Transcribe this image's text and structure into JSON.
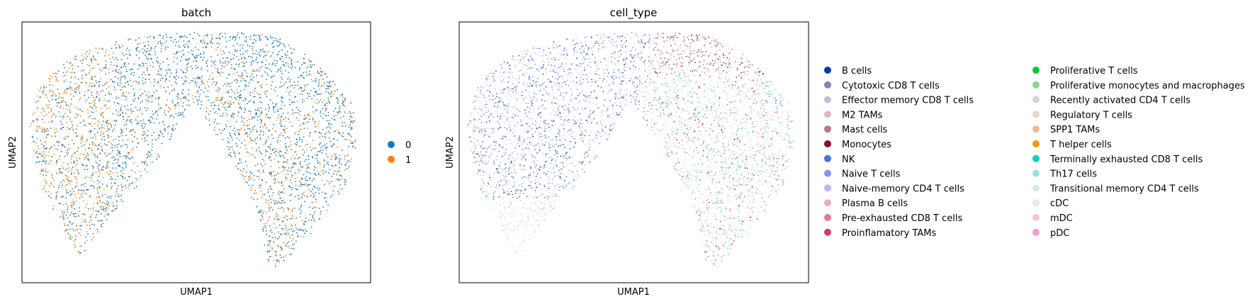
{
  "chart_data": [
    {
      "type": "scatter",
      "title": "batch",
      "xlabel": "UMAP1",
      "ylabel": "UMAP2",
      "grid": false,
      "ticks": false,
      "legend_placement": "right",
      "legend_columns": 1,
      "series": [
        {
          "name": "0",
          "color": "#1f77b4"
        },
        {
          "name": "1",
          "color": "#ff7f0e"
        }
      ]
    },
    {
      "type": "scatter",
      "title": "cell_type",
      "xlabel": "UMAP1",
      "ylabel": "UMAP2",
      "grid": false,
      "ticks": false,
      "legend_placement": "right",
      "legend_columns": 2,
      "series": [
        {
          "name": "B cells",
          "color": "#023fa5"
        },
        {
          "name": "Cytotoxic CD8 T cells",
          "color": "#7d87b9"
        },
        {
          "name": "Effector memory CD8 T cells",
          "color": "#bec1d4"
        },
        {
          "name": "M2 TAMs",
          "color": "#d6bcc0"
        },
        {
          "name": "Mast cells",
          "color": "#bb7784"
        },
        {
          "name": "Monocytes",
          "color": "#8e063b"
        },
        {
          "name": "NK",
          "color": "#4a6fe3"
        },
        {
          "name": "Naive T cells",
          "color": "#8595e1"
        },
        {
          "name": "Naive-memory CD4 T cells",
          "color": "#b5bbe3"
        },
        {
          "name": "Plasma B cells",
          "color": "#e6afb9"
        },
        {
          "name": "Pre-exhausted CD8 T cells",
          "color": "#e07b91"
        },
        {
          "name": "Proinflamatory TAMs",
          "color": "#d33f6a"
        },
        {
          "name": "Proliferative T cells",
          "color": "#11c638"
        },
        {
          "name": "Proliferative monocytes and macrophages",
          "color": "#8dd593"
        },
        {
          "name": "Recently activated CD4 T cells",
          "color": "#c6dec7"
        },
        {
          "name": "Regulatory T cells",
          "color": "#ead3c6"
        },
        {
          "name": "SPP1 TAMs",
          "color": "#f0b98d"
        },
        {
          "name": "T helper cells",
          "color": "#ef9708"
        },
        {
          "name": "Terminally exhausted CD8 T cells",
          "color": "#0fcfc0"
        },
        {
          "name": "Th17 cells",
          "color": "#9cded6"
        },
        {
          "name": "Transitional memory CD4 T cells",
          "color": "#d5eae7"
        },
        {
          "name": "cDC",
          "color": "#f3e1eb"
        },
        {
          "name": "mDC",
          "color": "#f6c4e1"
        },
        {
          "name": "pDC",
          "color": "#f79cd4"
        }
      ]
    }
  ]
}
